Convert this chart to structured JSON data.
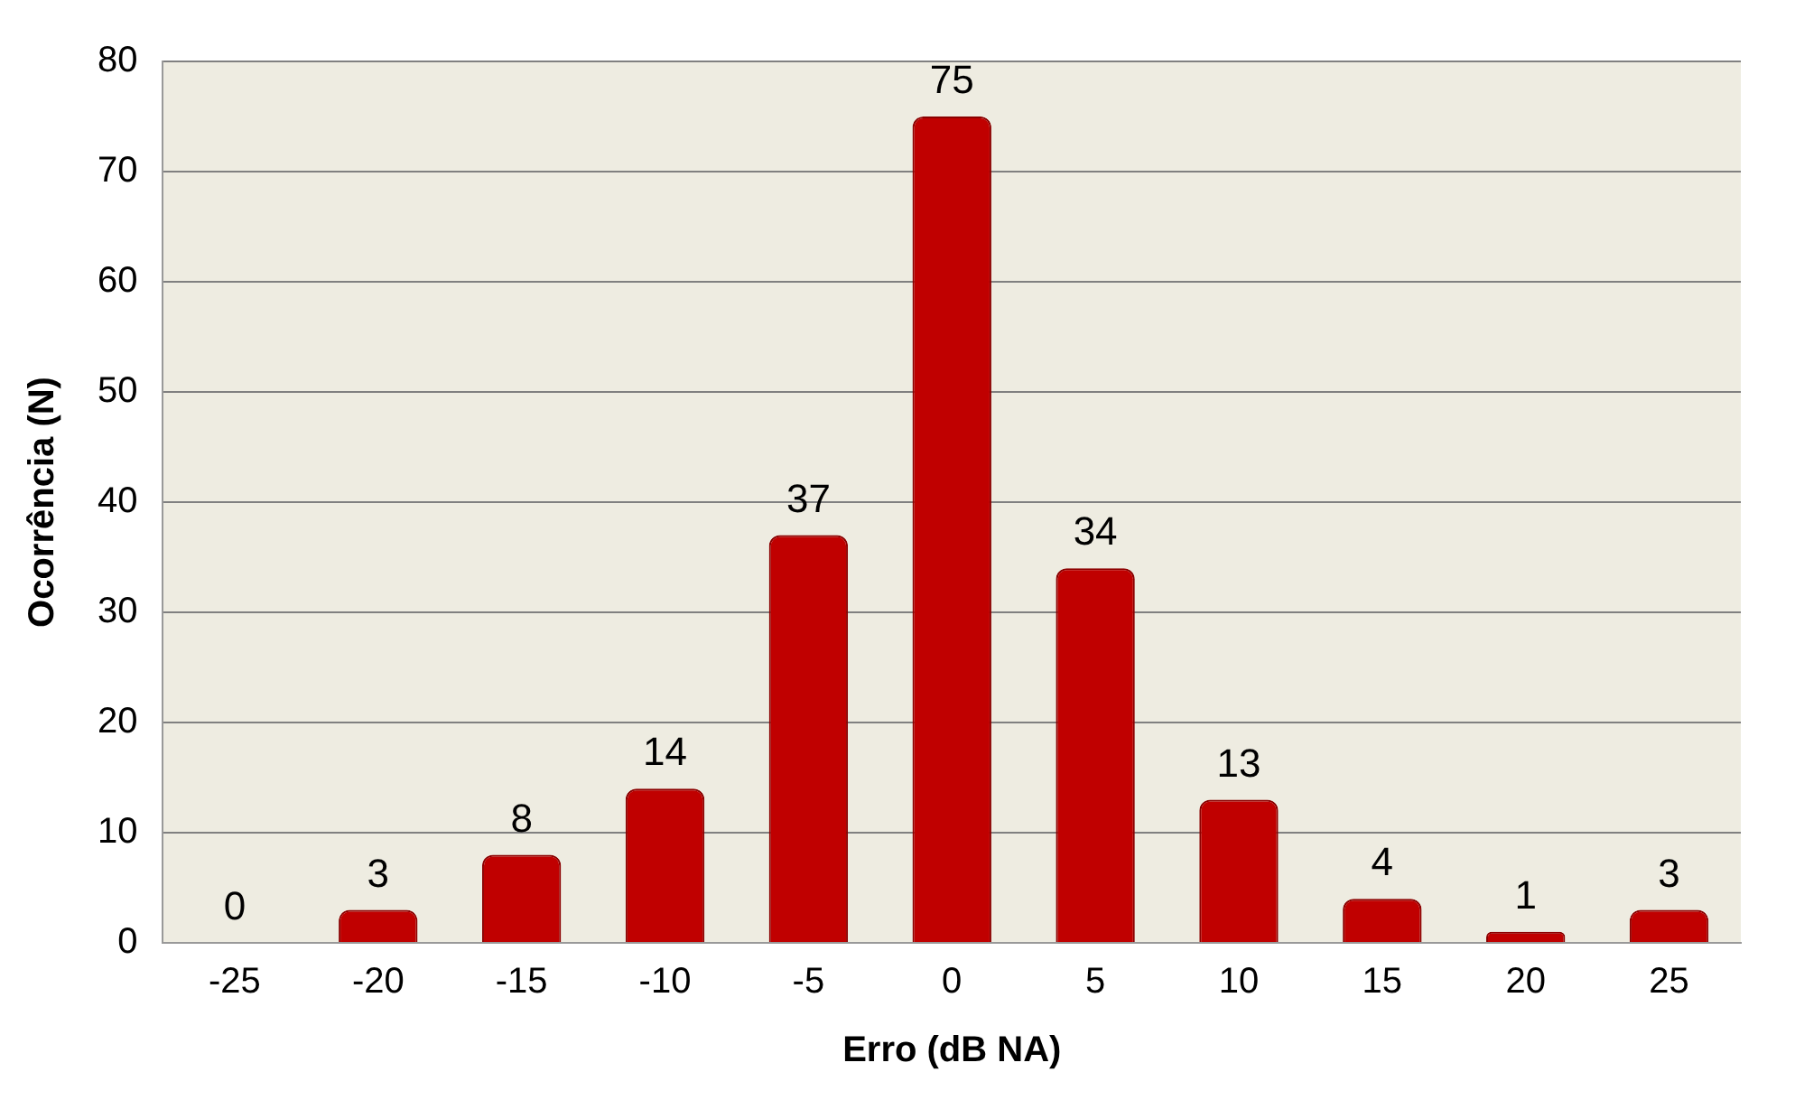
{
  "chart_data": {
    "type": "bar",
    "xlabel": "Erro (dB NA)",
    "ylabel": "Ocorrência (N)",
    "categories": [
      "-25",
      "-20",
      "-15",
      "-10",
      "-5",
      "0",
      "5",
      "10",
      "15",
      "20",
      "25"
    ],
    "values": [
      0,
      3,
      8,
      14,
      37,
      75,
      34,
      13,
      4,
      1,
      3
    ],
    "color": "#c00000",
    "ylim": [
      0,
      80
    ],
    "yticks": [
      0,
      10,
      20,
      30,
      40,
      50,
      60,
      70,
      80
    ],
    "grid": "y",
    "data_labels": true
  }
}
